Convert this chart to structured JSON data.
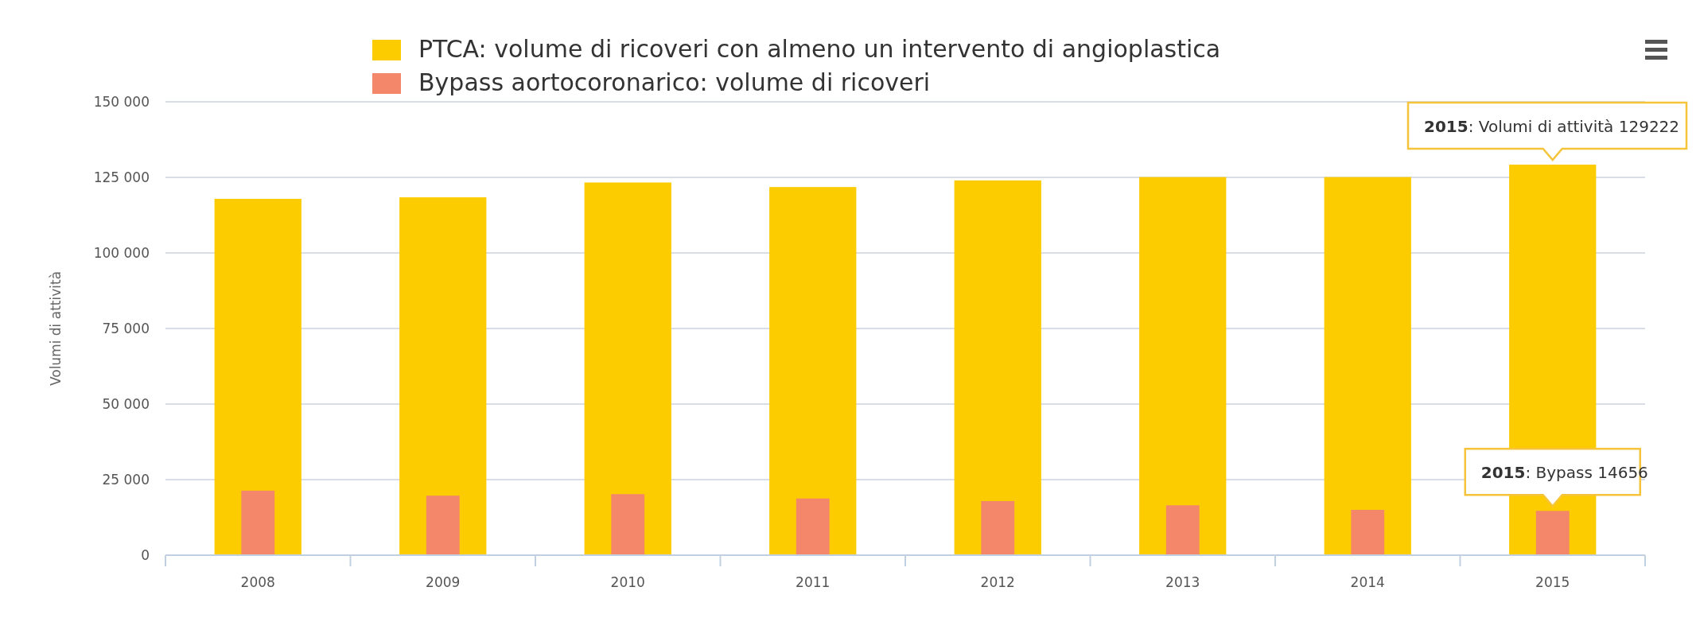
{
  "chart_data": {
    "type": "bar",
    "ylabel": "Volumi di attività",
    "categories": [
      "2008",
      "2009",
      "2010",
      "2011",
      "2012",
      "2013",
      "2014",
      "2015"
    ],
    "series": [
      {
        "name": "PTCA: volume di ricoveri con almeno un intervento di angioplastica",
        "color": "#fccc00",
        "values": [
          117900,
          118400,
          123300,
          121800,
          124000,
          125100,
          125100,
          129222
        ]
      },
      {
        "name": "Bypass aortocoronarico: volume di ricoveri",
        "color": "#f4866a",
        "values": [
          21350,
          19700,
          20200,
          18750,
          17900,
          16500,
          15000,
          14656
        ]
      }
    ],
    "ylim": [
      0,
      150000
    ],
    "yticks": [
      {
        "value": 0,
        "label": "0"
      },
      {
        "value": 25000,
        "label": "25 000"
      },
      {
        "value": 50000,
        "label": "50 000"
      },
      {
        "value": 75000,
        "label": "75 000"
      },
      {
        "value": 100000,
        "label": "100 000"
      },
      {
        "value": 125000,
        "label": "125 000"
      },
      {
        "value": 150000,
        "label": "150 000"
      }
    ],
    "grid": "y",
    "legend": "top",
    "annotations": [
      {
        "text": "2015: Volumi di attività 129222",
        "x": "2015",
        "y": 129222
      },
      {
        "text": "2015: Bypass 14656",
        "x": "2015",
        "y": 14656
      }
    ]
  }
}
